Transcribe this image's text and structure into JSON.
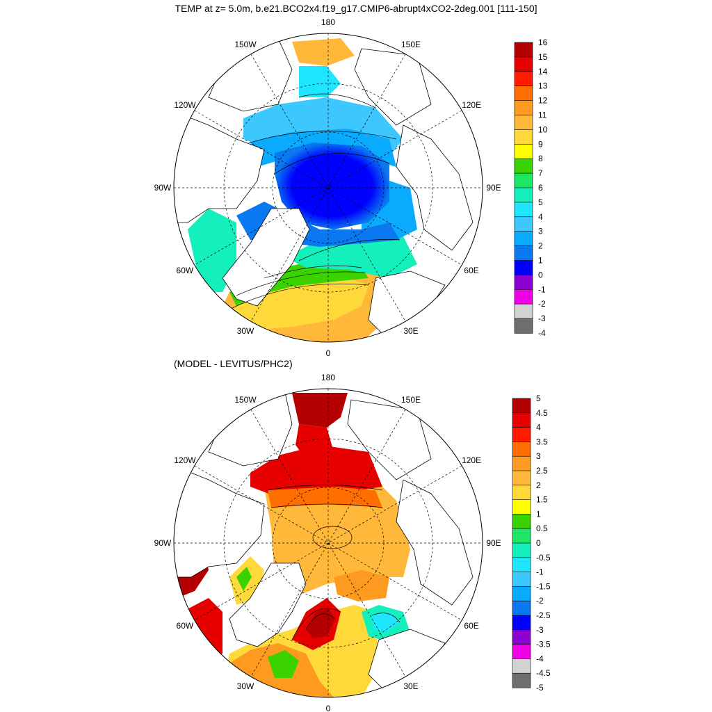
{
  "titles": {
    "main": "TEMP at z=   5.0m, b.e21.BCO2x4.f19_g17.CMIP6-abrupt4xCO2-2deg.001 [111-150]",
    "sub": "(MODEL - LEVITUS/PHC2)"
  },
  "chart_data": [
    {
      "type": "heatmap",
      "projection": "north-polar-stereographic",
      "variable": "TEMP",
      "longitude_labels": [
        "180",
        "150E",
        "120E",
        "90E",
        "60E",
        "30E",
        "0",
        "30W",
        "60W",
        "90W",
        "120W",
        "150W"
      ],
      "colorbar": {
        "levels": [
          16,
          15,
          14,
          13,
          12,
          11,
          10,
          9,
          8,
          7,
          6,
          5,
          4,
          3,
          2,
          1,
          0,
          -1,
          -2,
          -3,
          -4
        ],
        "colors": [
          "#b40000",
          "#e60000",
          "#ff1a00",
          "#ff6e00",
          "#ff9a20",
          "#ffb83a",
          "#ffd83a",
          "#ffff00",
          "#3ad200",
          "#1ee664",
          "#14f0bc",
          "#1ee6ff",
          "#3cc8ff",
          "#0aaaff",
          "#0a78f0",
          "#0000ff",
          "#8c00d2",
          "#f000e6",
          "#d2d2d2",
          "#6e6e6e"
        ]
      },
      "field_features": {
        "central_arctic": 0.5,
        "beaufort_chukchi": 3,
        "bering_strait": 11,
        "kara_laptev": 2,
        "barents_sea": 5,
        "norwegian_sea": 9,
        "north_atlantic": 12,
        "labrador_sea": 5,
        "hudson_bay": 7
      }
    },
    {
      "type": "heatmap",
      "projection": "north-polar-stereographic",
      "variable": "MODEL - LEVITUS/PHC2",
      "longitude_labels": [
        "180",
        "150E",
        "120E",
        "90E",
        "60E",
        "30E",
        "0",
        "30W",
        "60W",
        "90W",
        "120W",
        "150W"
      ],
      "colorbar": {
        "levels": [
          5,
          4.5,
          4,
          3.5,
          3,
          2.5,
          2,
          1.5,
          1,
          0.5,
          0,
          -0.5,
          -1,
          -1.5,
          -2,
          -2.5,
          -3,
          -3.5,
          -4,
          -4.5,
          -5
        ],
        "colors": [
          "#b40000",
          "#e60000",
          "#ff1a00",
          "#ff6e00",
          "#ff9a20",
          "#ffb83a",
          "#ffd83a",
          "#ffff00",
          "#3ad200",
          "#1ee664",
          "#14f0bc",
          "#1ee6ff",
          "#3cc8ff",
          "#0aaaff",
          "#0a78f0",
          "#0000ff",
          "#8c00d2",
          "#f000e6",
          "#d2d2d2",
          "#6e6e6e"
        ]
      },
      "field_features": {
        "central_arctic": 2.25,
        "bering_strait": 5,
        "beaufort_sea": 4.25,
        "east_greenland": 5,
        "barents_sea": -1.25,
        "labrador_sea": 4.5,
        "hudson_bay": 5
      }
    }
  ]
}
